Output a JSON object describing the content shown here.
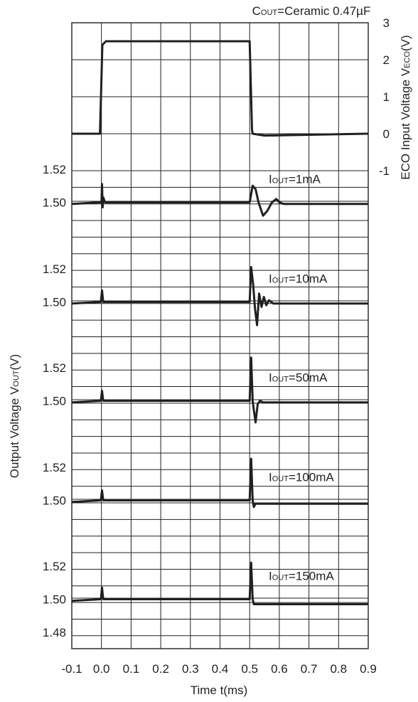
{
  "chart_data": {
    "type": "line",
    "title": "COUT=Ceramic 0.47µF",
    "title_main": "C",
    "title_sub": "OUT",
    "title_rest": "=Ceramic 0.47µF",
    "x": {
      "label": "Time t(ms)",
      "range": [
        -0.1,
        0.9
      ],
      "ticks": [
        "-0.1",
        "0.0",
        "0.1",
        "0.2",
        "0.3",
        "0.4",
        "0.5",
        "0.6",
        "0.7",
        "0.8",
        "0.9"
      ]
    },
    "eco_axis": {
      "label_main": "ECO Input Voltage V",
      "label_sub": "ECO",
      "label_rest": "(V)",
      "range": [
        -1,
        3
      ],
      "ticks": [
        "3",
        "2",
        "1",
        "0",
        "-1"
      ]
    },
    "vout_axis": {
      "label_main": "Output Voltage V",
      "label_sub": "OUT",
      "label_rest": "(V)",
      "ticks": [
        "1.52",
        "1.50",
        "1.48"
      ]
    },
    "grid": true,
    "eco_series": {
      "name": "ECO",
      "points": [
        [
          -0.1,
          0
        ],
        [
          -0.005,
          0
        ],
        [
          0.003,
          2.4
        ],
        [
          0.015,
          2.5
        ],
        [
          0.5,
          2.5
        ],
        [
          0.508,
          0.1
        ],
        [
          0.51,
          0
        ],
        [
          0.55,
          -0.05
        ],
        [
          0.9,
          0
        ]
      ]
    },
    "vout_series": [
      {
        "name": "IOUT=1mA",
        "ann_main": "I",
        "ann_sub": "OUT",
        "ann_rest": "=1mA",
        "points": [
          [
            -0.1,
            1.499
          ],
          [
            -0.005,
            1.5
          ],
          [
            0.0,
            1.5
          ],
          [
            0.002,
            1.511
          ],
          [
            0.004,
            1.497
          ],
          [
            0.006,
            1.503
          ],
          [
            0.012,
            1.5
          ],
          [
            0.5,
            1.5
          ],
          [
            0.51,
            1.51
          ],
          [
            0.52,
            1.508
          ],
          [
            0.53,
            1.5
          ],
          [
            0.545,
            1.492
          ],
          [
            0.56,
            1.495
          ],
          [
            0.575,
            1.5
          ],
          [
            0.59,
            1.502
          ],
          [
            0.6,
            1.5
          ],
          [
            0.615,
            1.499
          ],
          [
            0.64,
            1.499
          ],
          [
            0.9,
            1.499
          ]
        ]
      },
      {
        "name": "IOUT=10mA",
        "ann_main": "I",
        "ann_sub": "OUT",
        "ann_rest": "=10mA",
        "points": [
          [
            -0.1,
            1.499
          ],
          [
            -0.002,
            1.5
          ],
          [
            0.002,
            1.507
          ],
          [
            0.006,
            1.5
          ],
          [
            0.5,
            1.5
          ],
          [
            0.505,
            1.521
          ],
          [
            0.512,
            1.51
          ],
          [
            0.518,
            1.496
          ],
          [
            0.525,
            1.486
          ],
          [
            0.532,
            1.505
          ],
          [
            0.54,
            1.497
          ],
          [
            0.548,
            1.503
          ],
          [
            0.556,
            1.498
          ],
          [
            0.565,
            1.501
          ],
          [
            0.58,
            1.499
          ],
          [
            0.9,
            1.499
          ]
        ]
      },
      {
        "name": "IOUT=50mA",
        "ann_main": "I",
        "ann_sub": "OUT",
        "ann_rest": "=50mA",
        "points": [
          [
            -0.1,
            1.499
          ],
          [
            -0.002,
            1.5
          ],
          [
            0.002,
            1.506
          ],
          [
            0.006,
            1.5
          ],
          [
            0.5,
            1.5
          ],
          [
            0.505,
            1.526
          ],
          [
            0.51,
            1.5
          ],
          [
            0.515,
            1.493
          ],
          [
            0.52,
            1.487
          ],
          [
            0.527,
            1.498
          ],
          [
            0.535,
            1.5
          ],
          [
            0.545,
            1.499
          ],
          [
            0.9,
            1.499
          ]
        ]
      },
      {
        "name": "IOUT=100mA",
        "ann_main": "I",
        "ann_sub": "OUT",
        "ann_rest": "=100mA",
        "points": [
          [
            -0.1,
            1.499
          ],
          [
            -0.002,
            1.5
          ],
          [
            0.002,
            1.506
          ],
          [
            0.006,
            1.5
          ],
          [
            0.5,
            1.5
          ],
          [
            0.505,
            1.525
          ],
          [
            0.51,
            1.5
          ],
          [
            0.514,
            1.496
          ],
          [
            0.52,
            1.498
          ],
          [
            0.9,
            1.498
          ]
        ]
      },
      {
        "name": "IOUT=150mA",
        "ann_main": "I",
        "ann_sub": "OUT",
        "ann_rest": "=150mA",
        "points": [
          [
            -0.1,
            1.499
          ],
          [
            -0.002,
            1.5
          ],
          [
            0.002,
            1.507
          ],
          [
            0.006,
            1.5
          ],
          [
            0.25,
            1.5
          ],
          [
            0.5,
            1.5
          ],
          [
            0.505,
            1.522
          ],
          [
            0.51,
            1.5
          ],
          [
            0.514,
            1.497
          ],
          [
            0.9,
            1.497
          ]
        ]
      }
    ]
  }
}
